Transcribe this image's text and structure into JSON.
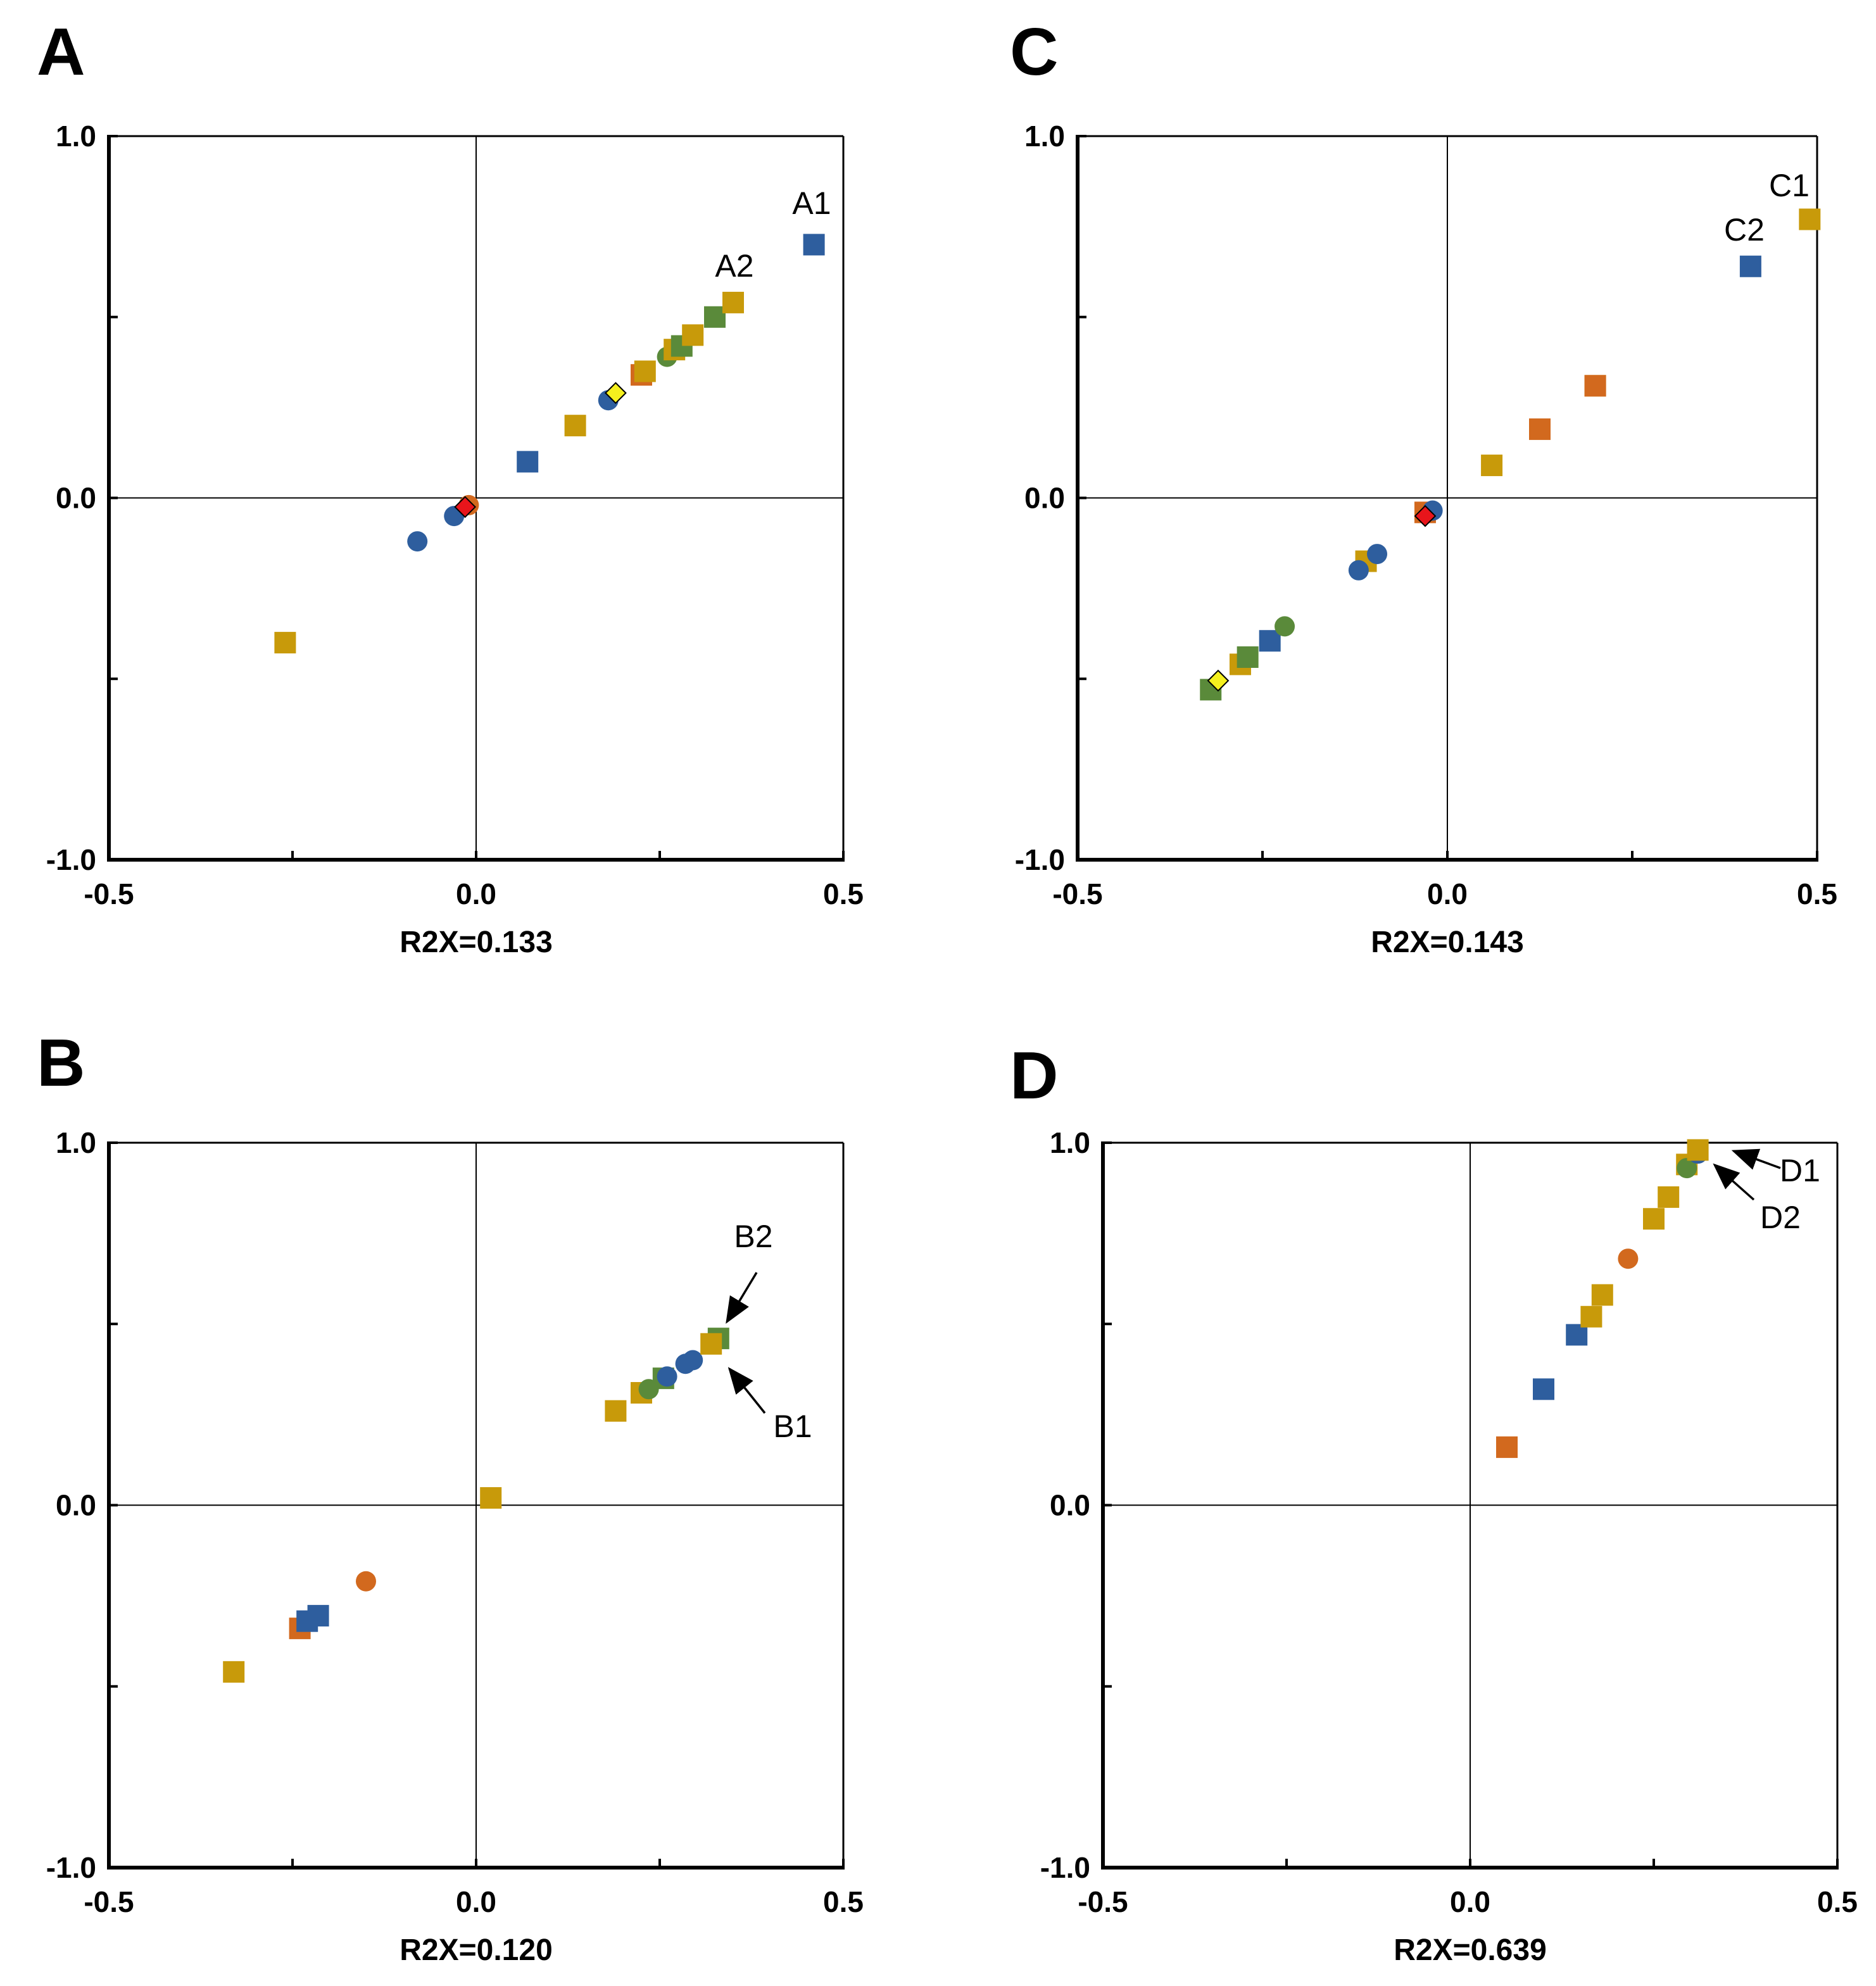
{
  "chart_data": [
    {
      "type": "scatter",
      "panel_letter": "A",
      "xlabel": "R2X=0.133",
      "xlim": [
        -0.5,
        0.5
      ],
      "ylim": [
        -1.0,
        1.0
      ],
      "x_tick_labels": [
        "-0.5",
        "0.0",
        "0.5"
      ],
      "y_tick_labels": [
        "1.0",
        "0.0",
        "-1.0"
      ],
      "points": [
        {
          "x": -0.26,
          "y": -0.4,
          "shape": "square",
          "color": "#C89A0A"
        },
        {
          "x": -0.08,
          "y": -0.12,
          "shape": "circle",
          "color": "#2E5E9E"
        },
        {
          "x": -0.03,
          "y": -0.05,
          "shape": "circle",
          "color": "#2E5E9E"
        },
        {
          "x": -0.01,
          "y": -0.02,
          "shape": "circle",
          "color": "#D2691E"
        },
        {
          "x": -0.015,
          "y": -0.025,
          "shape": "diamond",
          "color": "#E8151B"
        },
        {
          "x": 0.07,
          "y": 0.1,
          "shape": "square",
          "color": "#2E5E9E"
        },
        {
          "x": 0.135,
          "y": 0.2,
          "shape": "square",
          "color": "#C89A0A"
        },
        {
          "x": 0.18,
          "y": 0.27,
          "shape": "circle",
          "color": "#2E5E9E"
        },
        {
          "x": 0.19,
          "y": 0.29,
          "shape": "diamond",
          "color": "#F5F01E"
        },
        {
          "x": 0.225,
          "y": 0.34,
          "shape": "square",
          "color": "#D2691E"
        },
        {
          "x": 0.23,
          "y": 0.35,
          "shape": "square",
          "color": "#C89A0A"
        },
        {
          "x": 0.26,
          "y": 0.39,
          "shape": "circle",
          "color": "#5A8A3A"
        },
        {
          "x": 0.27,
          "y": 0.41,
          "shape": "square",
          "color": "#C89A0A"
        },
        {
          "x": 0.28,
          "y": 0.42,
          "shape": "square",
          "color": "#5A8A3A"
        },
        {
          "x": 0.295,
          "y": 0.45,
          "shape": "square",
          "color": "#C89A0A"
        },
        {
          "x": 0.325,
          "y": 0.5,
          "shape": "square",
          "color": "#5A8A3A"
        },
        {
          "x": 0.35,
          "y": 0.54,
          "shape": "square",
          "color": "#C89A0A"
        },
        {
          "x": 0.46,
          "y": 0.7,
          "shape": "square",
          "color": "#2E5E9E"
        }
      ],
      "annotations": [
        {
          "text": "A1",
          "x": 0.455,
          "y": 0.79
        },
        {
          "text": "A2",
          "x": 0.35,
          "y": 0.61
        }
      ]
    },
    {
      "type": "scatter",
      "panel_letter": "C",
      "xlabel": "R2X=0.143",
      "xlim": [
        -0.5,
        0.5
      ],
      "ylim": [
        -1.0,
        1.0
      ],
      "x_tick_labels": [
        "-0.5",
        "0.0",
        "0.5"
      ],
      "y_tick_labels": [
        "1.0",
        "0.0",
        "-1.0"
      ],
      "points": [
        {
          "x": -0.32,
          "y": -0.53,
          "shape": "square",
          "color": "#5A8A3A"
        },
        {
          "x": -0.31,
          "y": -0.505,
          "shape": "diamond",
          "color": "#F5F01E"
        },
        {
          "x": -0.28,
          "y": -0.46,
          "shape": "square",
          "color": "#C89A0A"
        },
        {
          "x": -0.27,
          "y": -0.44,
          "shape": "square",
          "color": "#5A8A3A"
        },
        {
          "x": -0.24,
          "y": -0.395,
          "shape": "square",
          "color": "#2E5E9E"
        },
        {
          "x": -0.22,
          "y": -0.355,
          "shape": "circle",
          "color": "#5A8A3A"
        },
        {
          "x": -0.11,
          "y": -0.175,
          "shape": "square",
          "color": "#C89A0A"
        },
        {
          "x": -0.12,
          "y": -0.2,
          "shape": "circle",
          "color": "#2E5E9E"
        },
        {
          "x": -0.095,
          "y": -0.155,
          "shape": "circle",
          "color": "#2E5E9E"
        },
        {
          "x": -0.03,
          "y": -0.04,
          "shape": "square",
          "color": "#D2691E"
        },
        {
          "x": -0.02,
          "y": -0.035,
          "shape": "circle",
          "color": "#2E5E9E"
        },
        {
          "x": -0.03,
          "y": -0.05,
          "shape": "diamond",
          "color": "#E8151B"
        },
        {
          "x": 0.06,
          "y": 0.09,
          "shape": "square",
          "color": "#C89A0A"
        },
        {
          "x": 0.125,
          "y": 0.19,
          "shape": "square",
          "color": "#D2691E"
        },
        {
          "x": 0.2,
          "y": 0.31,
          "shape": "square",
          "color": "#C89A0A"
        },
        {
          "x": 0.2,
          "y": 0.31,
          "shape": "square",
          "color": "#D2691E"
        },
        {
          "x": 0.41,
          "y": 0.64,
          "shape": "square",
          "color": "#2E5E9E"
        },
        {
          "x": 0.49,
          "y": 0.77,
          "shape": "square",
          "color": "#C89A0A"
        }
      ],
      "annotations": [
        {
          "text": "C1",
          "x": 0.465,
          "y": 0.83
        },
        {
          "text": "C2",
          "x": 0.385,
          "y": 0.71
        }
      ]
    },
    {
      "type": "scatter",
      "panel_letter": "B",
      "xlabel": "R2X=0.120",
      "xlim": [
        -0.5,
        0.5
      ],
      "ylim": [
        -1.0,
        1.0
      ],
      "x_tick_labels": [
        "-0.5",
        "0.0",
        "0.5"
      ],
      "y_tick_labels": [
        "1.0",
        "0.0",
        "-1.0"
      ],
      "points": [
        {
          "x": -0.33,
          "y": -0.46,
          "shape": "square",
          "color": "#C89A0A"
        },
        {
          "x": -0.24,
          "y": -0.34,
          "shape": "square",
          "color": "#D2691E"
        },
        {
          "x": -0.23,
          "y": -0.32,
          "shape": "square",
          "color": "#2E5E9E"
        },
        {
          "x": -0.215,
          "y": -0.305,
          "shape": "square",
          "color": "#2E5E9E"
        },
        {
          "x": -0.15,
          "y": -0.21,
          "shape": "circle",
          "color": "#D2691E"
        },
        {
          "x": 0.02,
          "y": 0.02,
          "shape": "square",
          "color": "#C89A0A"
        },
        {
          "x": 0.19,
          "y": 0.26,
          "shape": "square",
          "color": "#C89A0A"
        },
        {
          "x": 0.225,
          "y": 0.31,
          "shape": "square",
          "color": "#C89A0A"
        },
        {
          "x": 0.235,
          "y": 0.32,
          "shape": "circle",
          "color": "#5A8A3A"
        },
        {
          "x": 0.255,
          "y": 0.35,
          "shape": "square",
          "color": "#5A8A3A"
        },
        {
          "x": 0.26,
          "y": 0.355,
          "shape": "circle",
          "color": "#2E5E9E"
        },
        {
          "x": 0.285,
          "y": 0.39,
          "shape": "circle",
          "color": "#2E5E9E"
        },
        {
          "x": 0.295,
          "y": 0.4,
          "shape": "circle",
          "color": "#2E5E9E"
        },
        {
          "x": 0.33,
          "y": 0.46,
          "shape": "square",
          "color": "#5A8A3A"
        },
        {
          "x": 0.32,
          "y": 0.445,
          "shape": "square",
          "color": "#C89A0A"
        }
      ],
      "annotations": [
        {
          "text": "B2",
          "x": 0.38,
          "y": 0.72
        },
        {
          "text": "B1",
          "x": 0.43,
          "y": 0.18
        }
      ]
    },
    {
      "type": "scatter",
      "panel_letter": "D",
      "xlabel": "R2X=0.639",
      "xlim": [
        -0.5,
        0.5
      ],
      "ylim": [
        -1.0,
        1.0
      ],
      "x_tick_labels": [
        "-0.5",
        "0.0",
        "0.5"
      ],
      "y_tick_labels": [
        "1.0",
        "0.0",
        "-1.0"
      ],
      "points": [
        {
          "x": 0.05,
          "y": 0.16,
          "shape": "square",
          "color": "#D2691E"
        },
        {
          "x": 0.1,
          "y": 0.32,
          "shape": "square",
          "color": "#2E5E9E"
        },
        {
          "x": 0.145,
          "y": 0.47,
          "shape": "square",
          "color": "#2E5E9E"
        },
        {
          "x": 0.165,
          "y": 0.52,
          "shape": "square",
          "color": "#C89A0A"
        },
        {
          "x": 0.18,
          "y": 0.58,
          "shape": "square",
          "color": "#C89A0A"
        },
        {
          "x": 0.215,
          "y": 0.68,
          "shape": "circle",
          "color": "#D2691E"
        },
        {
          "x": 0.25,
          "y": 0.79,
          "shape": "square",
          "color": "#C89A0A"
        },
        {
          "x": 0.27,
          "y": 0.85,
          "shape": "square",
          "color": "#C89A0A"
        },
        {
          "x": 0.295,
          "y": 0.94,
          "shape": "square",
          "color": "#C89A0A"
        },
        {
          "x": 0.295,
          "y": 0.93,
          "shape": "circle",
          "color": "#5A8A3A"
        },
        {
          "x": 0.31,
          "y": 0.97,
          "shape": "circle",
          "color": "#2E5E9E"
        },
        {
          "x": 0.31,
          "y": 0.98,
          "shape": "square",
          "color": "#C89A0A"
        }
      ],
      "annotations": [
        {
          "text": "D1",
          "x": 0.45,
          "y": 0.88
        },
        {
          "text": "D2",
          "x": 0.43,
          "y": 0.75
        }
      ]
    }
  ]
}
